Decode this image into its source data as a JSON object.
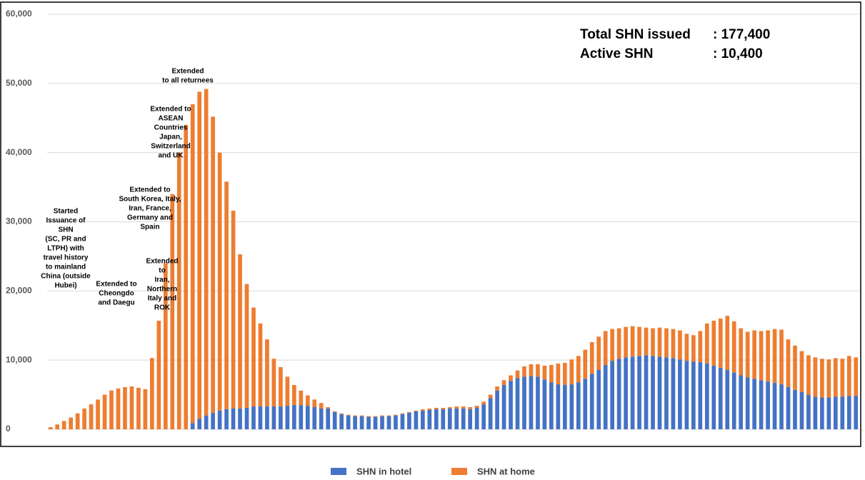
{
  "chart_data": {
    "type": "stacked-bar",
    "categories": [
      null,
      null,
      null,
      null,
      null,
      null,
      null,
      null,
      null,
      null,
      null,
      null,
      null,
      null,
      null,
      null,
      null,
      null,
      null,
      null,
      null,
      null,
      null,
      null,
      null,
      null,
      null,
      null,
      null,
      null,
      null,
      null,
      null,
      null,
      null,
      null,
      null,
      null,
      null,
      null,
      null,
      null,
      null,
      null,
      null,
      null,
      null,
      null,
      null,
      null,
      null,
      null,
      null,
      null,
      null,
      null,
      null,
      null,
      null,
      null,
      null,
      null,
      null,
      null,
      null,
      null,
      null,
      null,
      null,
      null,
      null,
      null,
      null,
      null,
      null,
      null,
      null,
      null,
      null,
      null,
      null,
      null,
      null,
      null,
      null,
      null,
      null,
      null,
      null,
      null,
      null,
      null,
      null,
      null,
      null,
      null,
      null,
      null,
      null,
      null,
      null,
      null,
      null,
      null,
      null,
      null,
      null,
      null,
      null,
      null,
      null,
      null,
      null,
      null,
      null,
      null,
      null,
      null,
      null,
      null
    ],
    "series": [
      {
        "name": "SHN in hotel",
        "color": "#4472c4",
        "values": [
          0,
          0,
          0,
          0,
          0,
          0,
          0,
          0,
          0,
          0,
          0,
          0,
          0,
          0,
          0,
          0,
          0,
          0,
          0,
          0,
          0,
          900,
          1500,
          2000,
          2400,
          2700,
          2900,
          3000,
          3000,
          3100,
          3300,
          3300,
          3300,
          3300,
          3300,
          3400,
          3500,
          3500,
          3400,
          3200,
          3000,
          3000,
          2500,
          2200,
          2000,
          1900,
          1900,
          1800,
          1800,
          1900,
          1900,
          2000,
          2200,
          2400,
          2600,
          2700,
          2800,
          2900,
          2900,
          3000,
          3000,
          3000,
          2900,
          3100,
          3600,
          4500,
          5600,
          6400,
          7000,
          7400,
          7600,
          7700,
          7600,
          7200,
          6800,
          6500,
          6400,
          6500,
          6800,
          7300,
          8000,
          8600,
          9300,
          9900,
          10200,
          10400,
          10500,
          10600,
          10700,
          10600,
          10500,
          10400,
          10300,
          10100,
          9900,
          9800,
          9700,
          9500,
          9200,
          8900,
          8600,
          8200,
          7800,
          7500,
          7300,
          7100,
          6900,
          6700,
          6500,
          6100,
          5700,
          5400,
          5000,
          4700,
          4600,
          4600,
          4700,
          4700,
          4800,
          4800
        ]
      },
      {
        "name": "SHN at home",
        "color": "#ed7d31",
        "values": [
          300,
          700,
          1200,
          1700,
          2300,
          3000,
          3600,
          4300,
          5000,
          5600,
          5900,
          6100,
          6200,
          6000,
          5800,
          10300,
          15700,
          24000,
          34000,
          40000,
          44000,
          46100,
          47300,
          47200,
          42800,
          37300,
          32900,
          28600,
          22300,
          17900,
          14300,
          12000,
          9700,
          6900,
          5700,
          4200,
          2900,
          2100,
          1500,
          1100,
          800,
          200,
          100,
          100,
          100,
          100,
          100,
          100,
          100,
          100,
          100,
          100,
          100,
          100,
          100,
          200,
          200,
          200,
          200,
          200,
          300,
          300,
          300,
          300,
          400,
          500,
          600,
          700,
          800,
          1100,
          1500,
          1700,
          1800,
          2000,
          2500,
          3000,
          3200,
          3600,
          3800,
          4200,
          4600,
          4800,
          4900,
          4600,
          4400,
          4400,
          4400,
          4200,
          4000,
          4000,
          4200,
          4200,
          4200,
          4200,
          3900,
          3800,
          4500,
          5800,
          6500,
          7100,
          7800,
          7400,
          6800,
          6600,
          7000,
          7100,
          7400,
          7800,
          7900,
          6900,
          6400,
          5900,
          5700,
          5700,
          5600,
          5500,
          5600,
          5500,
          5800,
          5600
        ]
      }
    ],
    "ylim": [
      0,
      60000
    ],
    "yticks": [
      0,
      {
        "value": 10000,
        "label": "10,000"
      },
      {
        "value": 20000,
        "label": "20,000"
      },
      {
        "value": 30000,
        "label": "30,000"
      },
      {
        "value": 40000,
        "label": "40,000"
      },
      {
        "value": 50000,
        "label": "50,000"
      },
      {
        "value": 60000,
        "label": "60,000"
      }
    ],
    "grid": true,
    "legend": "bottom",
    "summary": [
      [
        "Total SHN issued",
        ": 177,400"
      ],
      [
        "Active SHN",
        ": 10,400"
      ]
    ],
    "annotations": [
      {
        "lines": [
          "Started",
          "Issuance of",
          "SHN",
          "(SC, PR and",
          "LTPH) with",
          "travel history",
          "to mainland",
          "China (outside",
          "Hubei)"
        ]
      },
      {
        "lines": [
          "Extended to",
          "Cheongdo",
          "and Daegu"
        ]
      },
      {
        "lines": [
          "Extended",
          "to",
          "Iran,",
          "Northern",
          "Italy and",
          "ROK"
        ]
      },
      {
        "lines": [
          "Extended to",
          "South Korea, Italy,",
          "Iran, France,",
          "Germany and",
          "Spain"
        ]
      },
      {
        "lines": [
          "Extended to",
          "ASEAN",
          "Countries",
          "Japan,",
          "Switzerland",
          "and UK"
        ]
      },
      {
        "lines": [
          "Extended",
          "to all returnees"
        ]
      }
    ]
  }
}
